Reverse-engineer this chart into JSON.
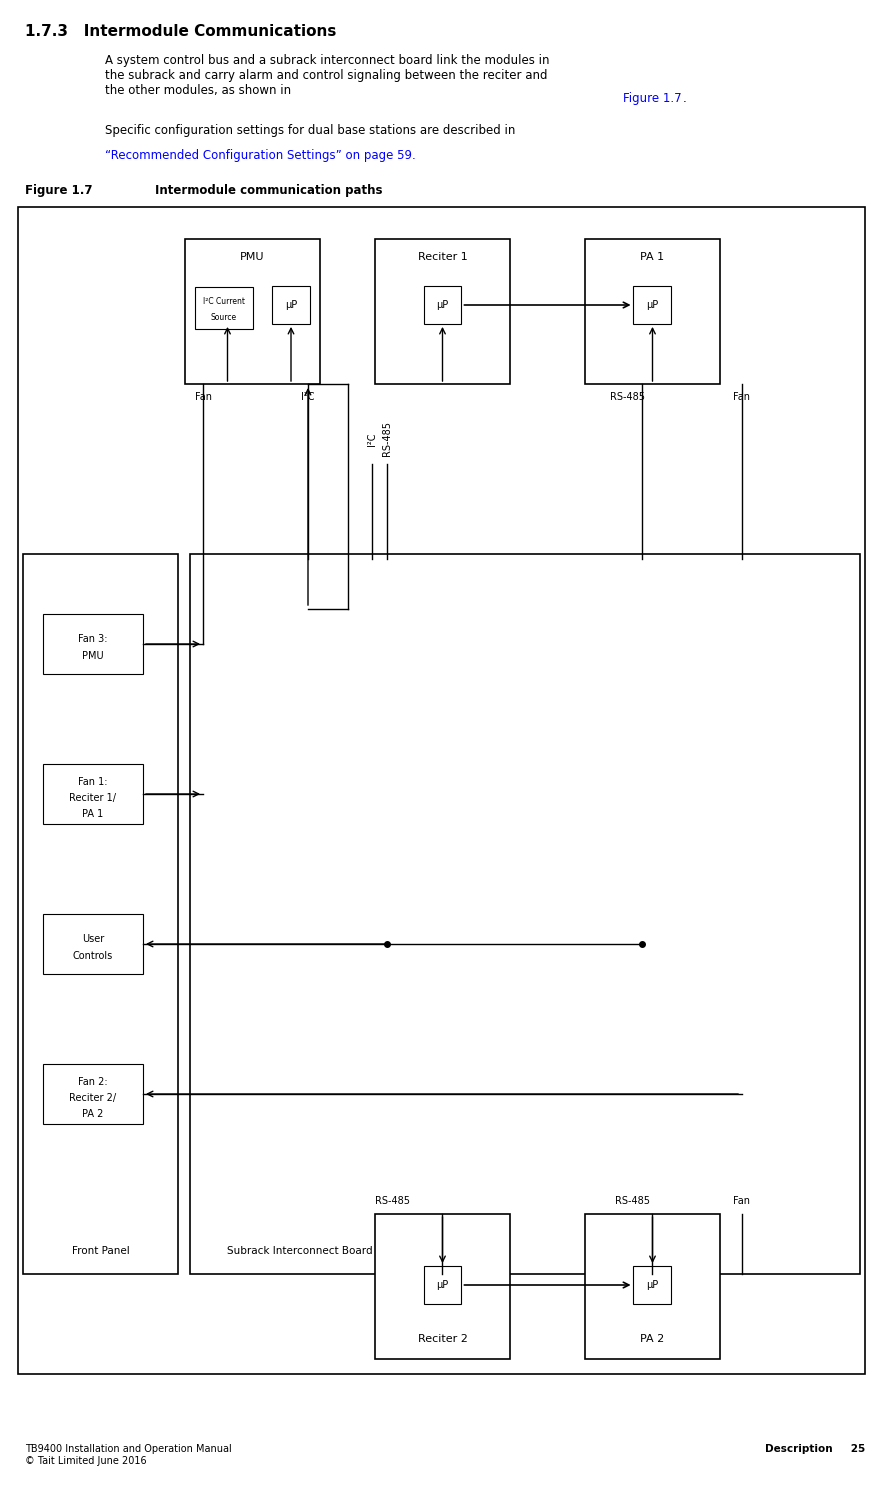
{
  "page_title": "1.7.3   Intermodule Communications",
  "body_text1": "A system control bus and a subrack interconnect board link the modules in\nthe subrack and carry alarm and control signaling between the reciter and\nthe other modules, as shown in Figure 1.7.",
  "body_text2": "Specific configuration settings for dual base stations are described in\n“Recommended Configuration Settings” on page 59.",
  "figure_label": "Figure 1.7",
  "figure_title": "Intermodule communication paths",
  "footer_left": "TB9400 Installation and Operation Manual\n© Tait Limited June 2016",
  "footer_right": "Description     25",
  "diagram_border_color": "#000000",
  "background_color": "#ffffff",
  "text_color": "#000000",
  "link_color": "#0000ff",
  "mu_p_label": "μP"
}
